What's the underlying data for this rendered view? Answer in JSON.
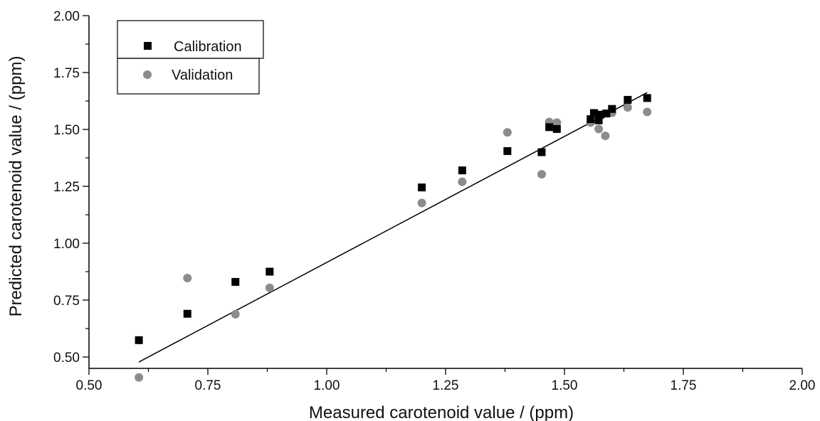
{
  "chart_data": {
    "type": "scatter",
    "title": "",
    "xlabel": "Measured carotenoid  value / (ppm)",
    "ylabel": "Predicted carotenoid value / (ppm)",
    "xlim": [
      0.5,
      2.0
    ],
    "ylim": [
      0.45,
      2.0
    ],
    "x_ticks": [
      "0.50",
      "0.75",
      "1.00",
      "1.25",
      "1.50",
      "1.75",
      "2.00"
    ],
    "y_ticks": [
      "0.50",
      "0.75",
      "1.00",
      "1.25",
      "1.50",
      "1.75",
      "2.00"
    ],
    "grid": false,
    "legend_position": "top-left",
    "series": [
      {
        "name": "Calibration",
        "marker": "square",
        "color": "#000000",
        "points": [
          [
            0.605,
            0.574
          ],
          [
            0.707,
            0.69
          ],
          [
            0.808,
            0.83
          ],
          [
            0.88,
            0.875
          ],
          [
            1.2,
            1.245
          ],
          [
            1.285,
            1.32
          ],
          [
            1.38,
            1.405
          ],
          [
            1.452,
            1.4
          ],
          [
            1.468,
            1.51
          ],
          [
            1.484,
            1.502
          ],
          [
            1.555,
            1.545
          ],
          [
            1.562,
            1.572
          ],
          [
            1.572,
            1.54
          ],
          [
            1.576,
            1.565
          ],
          [
            1.588,
            1.57
          ],
          [
            1.6,
            1.59
          ],
          [
            1.633,
            1.63
          ],
          [
            1.674,
            1.638
          ]
        ]
      },
      {
        "name": "Validation",
        "marker": "circle",
        "color": "#8c8c8c",
        "points": [
          [
            0.605,
            0.41
          ],
          [
            0.707,
            0.847
          ],
          [
            0.808,
            0.688
          ],
          [
            0.88,
            0.804
          ],
          [
            1.2,
            1.177
          ],
          [
            1.285,
            1.27
          ],
          [
            1.38,
            1.487
          ],
          [
            1.452,
            1.303
          ],
          [
            1.468,
            1.533
          ],
          [
            1.484,
            1.53
          ],
          [
            1.555,
            1.53
          ],
          [
            1.572,
            1.502
          ],
          [
            1.586,
            1.472
          ],
          [
            1.6,
            1.573
          ],
          [
            1.633,
            1.597
          ],
          [
            1.674,
            1.577
          ]
        ]
      }
    ],
    "fit_line": {
      "x": [
        0.605,
        1.674
      ],
      "y": [
        0.478,
        1.662
      ],
      "color": "#000000"
    }
  }
}
